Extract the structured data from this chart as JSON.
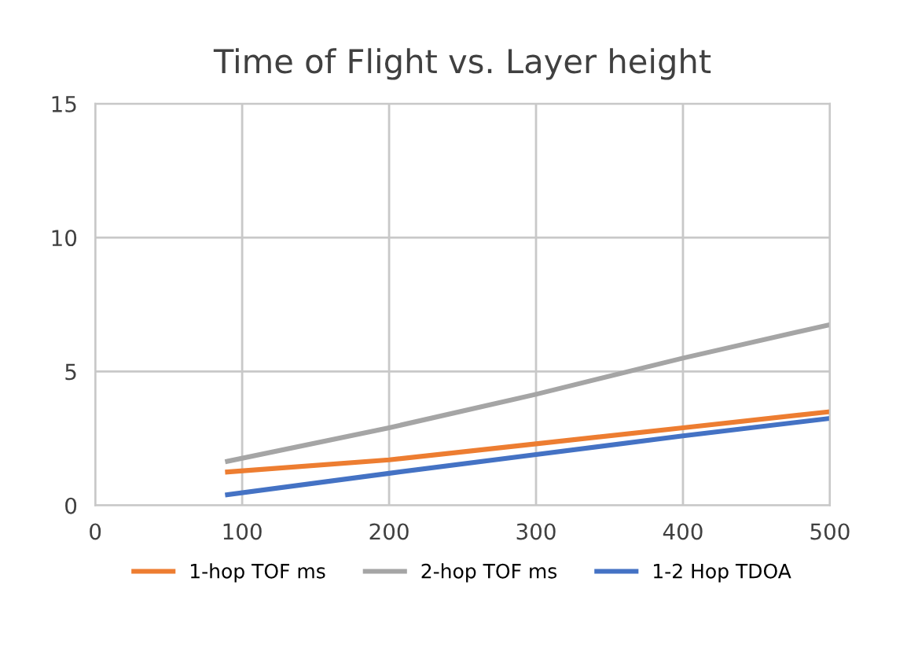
{
  "chart_data": {
    "type": "line",
    "title": "Time of Flight vs. Layer height",
    "x": [
      90,
      200,
      300,
      400,
      500
    ],
    "series": [
      {
        "name": "1-hop TOF ms",
        "color": "#ed7d31",
        "values": [
          1.25,
          1.7,
          2.3,
          2.9,
          3.5
        ]
      },
      {
        "name": "2-hop TOF ms",
        "color": "#a5a5a5",
        "values": [
          1.65,
          2.9,
          4.15,
          5.5,
          6.75
        ]
      },
      {
        "name": "1-2 Hop TDOA",
        "color": "#4472c4",
        "values": [
          0.4,
          1.2,
          1.9,
          2.6,
          3.25
        ]
      }
    ],
    "xlim": [
      0,
      500
    ],
    "ylim": [
      0,
      15
    ],
    "xticks": [
      0,
      100,
      200,
      300,
      400,
      500
    ],
    "yticks": [
      0,
      5,
      10,
      15
    ],
    "grid": true,
    "legend": "bottom",
    "marker": "none",
    "line_style": "solid"
  }
}
